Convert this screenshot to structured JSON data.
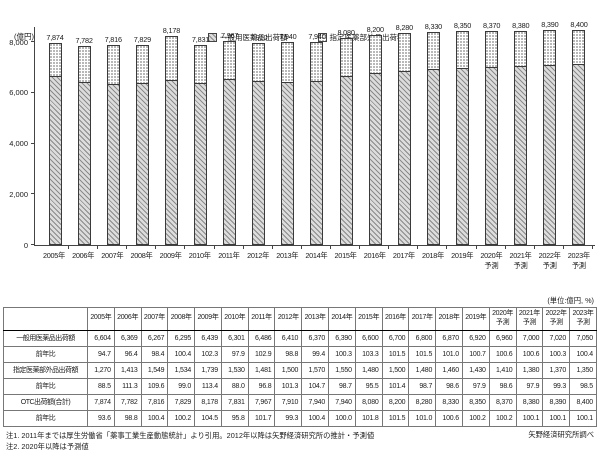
{
  "chart_data": {
    "type": "bar",
    "stacked": true,
    "title": "",
    "ylabel": "(億円)",
    "ylim": [
      0,
      8600
    ],
    "grid": false,
    "legend_position": "top",
    "y_ticks": {
      "values": [
        0,
        2000,
        4000,
        6000,
        8000
      ],
      "labels": [
        "0",
        "2,000",
        "4,000",
        "6,000",
        "8,000"
      ]
    },
    "categories": [
      "2005年",
      "2006年",
      "2007年",
      "2008年",
      "2009年",
      "2010年",
      "2011年",
      "2012年",
      "2013年",
      "2014年",
      "2015年",
      "2016年",
      "2017年",
      "2018年",
      "2019年",
      "2020年予測",
      "2021年予測",
      "2022年予測",
      "2023年予測"
    ],
    "axis_labels": [
      "2005年",
      "2006年",
      "2007年",
      "2008年",
      "2009年",
      "2010年",
      "2011年",
      "2012年",
      "2013年",
      "2014年",
      "2015年",
      "2016年",
      "2017年",
      "2018年",
      "2019年",
      "2020年\n予測",
      "2021年\n予測",
      "2022年\n予測",
      "2023年\n予測"
    ],
    "series": [
      {
        "name": "一般用医薬品出荷額",
        "pattern": "hatch",
        "values": [
          6604,
          6369,
          6267,
          6295,
          6439,
          6301,
          6486,
          6410,
          6370,
          6390,
          6600,
          6700,
          6800,
          6870,
          6920,
          6960,
          7000,
          7020,
          7050
        ]
      },
      {
        "name": "指定医薬部外品出荷額",
        "pattern": "dots",
        "values": [
          1270,
          1413,
          1549,
          1534,
          1739,
          1530,
          1481,
          1500,
          1570,
          1550,
          1480,
          1500,
          1480,
          1460,
          1430,
          1410,
          1380,
          1370,
          1350
        ]
      }
    ],
    "totals": [
      7874,
      7782,
      7816,
      7829,
      8178,
      7831,
      7967,
      7910,
      7940,
      7940,
      8080,
      8200,
      8280,
      8330,
      8350,
      8370,
      8380,
      8390,
      8400
    ],
    "total_labels": [
      "7,874",
      "7,782",
      "7,816",
      "7,829",
      "8,178",
      "7,831",
      "7,967",
      "7,910",
      "7,940",
      "7,940",
      "8,080",
      "8,200",
      "8,280",
      "8,330",
      "8,350",
      "8,370",
      "8,380",
      "8,390",
      "8,400"
    ]
  },
  "table": {
    "unit_note": "(単位:億円, %)",
    "col_headers": [
      "2005年",
      "2006年",
      "2007年",
      "2008年",
      "2009年",
      "2010年",
      "2011年",
      "2012年",
      "2013年",
      "2014年",
      "2015年",
      "2016年",
      "2017年",
      "2018年",
      "2019年",
      "2020年\n予測",
      "2021年\n予測",
      "2022年\n予測",
      "2023年\n予測"
    ],
    "rows": [
      {
        "label": "一般用医薬品出荷額",
        "style": "grp-first",
        "values": [
          "6,604",
          "6,369",
          "6,267",
          "6,295",
          "6,439",
          "6,301",
          "6,486",
          "6,410",
          "6,370",
          "6,390",
          "6,600",
          "6,700",
          "6,800",
          "6,870",
          "6,920",
          "6,960",
          "7,000",
          "7,020",
          "7,050"
        ]
      },
      {
        "label": "前年比",
        "style": "sub",
        "values": [
          "94.7",
          "96.4",
          "98.4",
          "100.4",
          "102.3",
          "97.9",
          "102.9",
          "98.8",
          "99.4",
          "100.3",
          "103.3",
          "101.5",
          "101.5",
          "101.0",
          "100.7",
          "100.6",
          "100.6",
          "100.3",
          "100.4"
        ]
      },
      {
        "label": "指定医薬部外品出荷額",
        "style": "plain",
        "values": [
          "1,270",
          "1,413",
          "1,549",
          "1,534",
          "1,739",
          "1,530",
          "1,481",
          "1,500",
          "1,570",
          "1,550",
          "1,480",
          "1,500",
          "1,480",
          "1,460",
          "1,430",
          "1,410",
          "1,380",
          "1,370",
          "1,350"
        ]
      },
      {
        "label": "前年比",
        "style": "sub",
        "values": [
          "88.5",
          "111.3",
          "109.6",
          "99.0",
          "113.4",
          "88.0",
          "96.8",
          "101.3",
          "104.7",
          "98.7",
          "95.5",
          "101.4",
          "98.7",
          "98.6",
          "97.9",
          "98.6",
          "97.9",
          "99.3",
          "98.5"
        ]
      },
      {
        "label": "OTC出荷額(合計)",
        "style": "grp",
        "values": [
          "7,874",
          "7,782",
          "7,816",
          "7,829",
          "8,178",
          "7,831",
          "7,967",
          "7,910",
          "7,940",
          "7,940",
          "8,080",
          "8,200",
          "8,280",
          "8,330",
          "8,350",
          "8,370",
          "8,380",
          "8,390",
          "8,400"
        ]
      },
      {
        "label": "前年比",
        "style": "sub",
        "values": [
          "93.6",
          "98.8",
          "100.4",
          "100.2",
          "104.5",
          "95.8",
          "101.7",
          "99.3",
          "100.4",
          "100.0",
          "101.8",
          "101.5",
          "101.0",
          "100.6",
          "100.2",
          "100.2",
          "100.1",
          "100.1",
          "100.1"
        ]
      }
    ]
  },
  "footnotes": {
    "note1": "注1. 2011年までは厚生労働省「薬事工業生産動態統計」より引用。2012年以降は矢野経済研究所の推計・予測値",
    "note2": "注2. 2020年以降は予測値",
    "source": "矢野経済研究所調べ"
  }
}
